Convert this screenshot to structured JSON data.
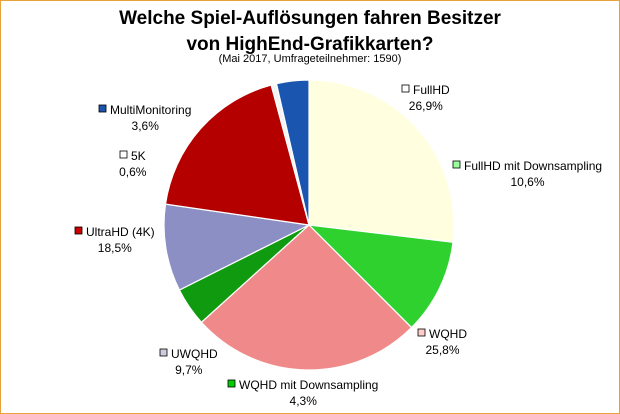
{
  "chart_data": {
    "type": "pie",
    "title_line1": "Welche Spiel-Auflösungen fahren Besitzer",
    "title_line2": "von HighEnd-Grafikkarten?",
    "subtitle": "(Mai 2017, Umfrageteilnehmer: 1590)",
    "slices": [
      {
        "name": "FullHD",
        "value_label": "26,9%",
        "value": 26.9,
        "color": "#ffffe0",
        "legend_color": "#ffffff"
      },
      {
        "name": "FullHD mit Downsampling",
        "value_label": "10,6%",
        "value": 10.6,
        "color": "#2ed12e",
        "legend_color": "#99ff99"
      },
      {
        "name": "WQHD",
        "value_label": "25,8%",
        "value": 25.8,
        "color": "#f08a8a",
        "legend_color": "#ffcccc"
      },
      {
        "name": "WQHD mit Downsampling",
        "value_label": "4,3%",
        "value": 4.3,
        "color": "#0f9a0f",
        "legend_color": "#00cc00"
      },
      {
        "name": "UWQHD",
        "value_label": "9,7%",
        "value": 9.7,
        "color": "#8b8fc4",
        "legend_color": "#ccccdd"
      },
      {
        "name": "UltraHD (4K)",
        "value_label": "18,5%",
        "value": 18.5,
        "color": "#b50000",
        "legend_color": "#cc0000"
      },
      {
        "name": "5K",
        "value_label": "0,6%",
        "value": 0.6,
        "color": "#f4f4f4",
        "legend_color": "#ffffff"
      },
      {
        "name": "MultiMonitoring",
        "value_label": "3,6%",
        "value": 3.6,
        "color": "#1a55b0",
        "legend_color": "#1a55b0"
      }
    ]
  }
}
